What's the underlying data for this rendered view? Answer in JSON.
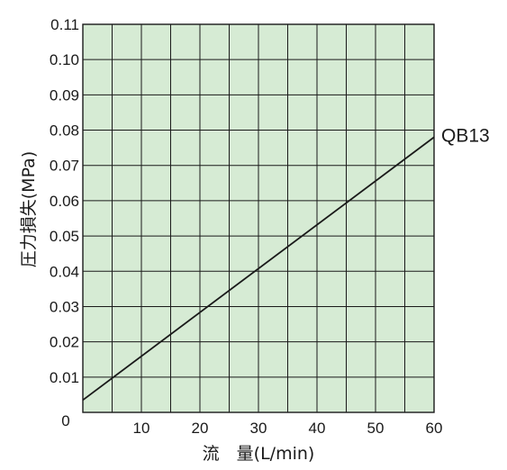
{
  "chart_data": {
    "type": "line",
    "xlabel": "流　量(L/min)",
    "ylabel": "圧力損失(MPa)",
    "xlim": [
      0,
      60
    ],
    "ylim": [
      0,
      0.11
    ],
    "x_ticks": [
      "0",
      "10",
      "20",
      "30",
      "40",
      "50",
      "60"
    ],
    "y_ticks": [
      "0.01",
      "0.02",
      "0.03",
      "0.04",
      "0.05",
      "0.06",
      "0.07",
      "0.08",
      "0.09",
      "0.10",
      "0.11"
    ],
    "x_grid_step": 5,
    "y_grid_step": 0.01,
    "grid": true,
    "series": [
      {
        "name": "QB13",
        "x": [
          0,
          60
        ],
        "y": [
          0.0035,
          0.078
        ]
      }
    ],
    "colors": {
      "plot_background": "#d6ebd4",
      "grid": "#1a1a1a",
      "line": "#1a1a1a"
    }
  }
}
